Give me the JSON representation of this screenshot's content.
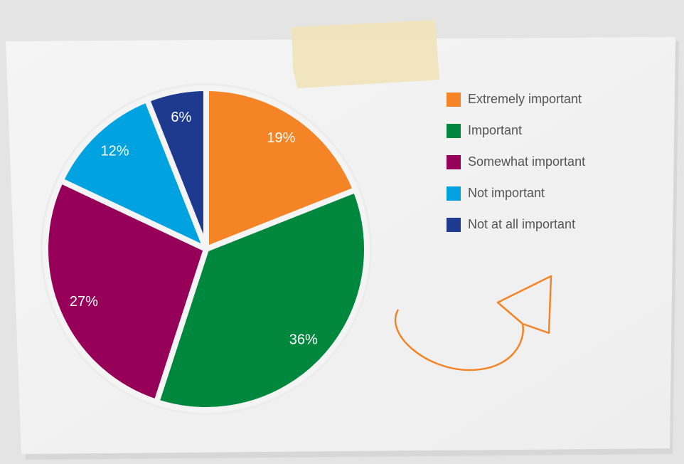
{
  "chart_data": {
    "type": "pie",
    "categories": [
      "Extremely important",
      "Important",
      "Somewhat important",
      "Not important",
      "Not at all important"
    ],
    "values": [
      19,
      36,
      27,
      12,
      6
    ],
    "value_labels": [
      "19%",
      "36%",
      "27%",
      "12%",
      "6%"
    ],
    "colors": [
      "#f58426",
      "#00873e",
      "#970059",
      "#00a3e0",
      "#1d3a8f"
    ],
    "legend": "top-right"
  }
}
